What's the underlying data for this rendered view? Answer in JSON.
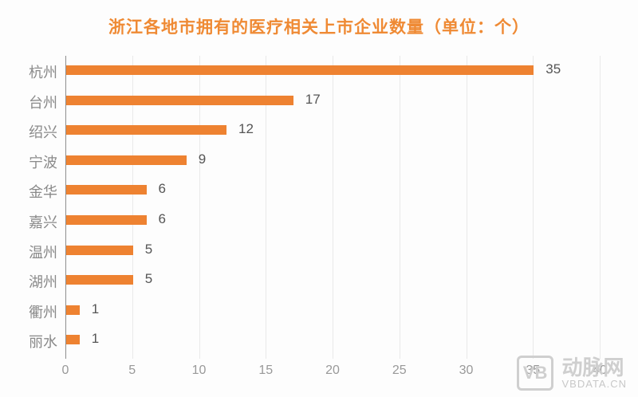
{
  "chart_data": {
    "type": "bar",
    "orientation": "horizontal",
    "title": "浙江各地市拥有的医疗相关上市企业数量（单位：个）",
    "categories": [
      "杭州",
      "台州",
      "绍兴",
      "宁波",
      "金华",
      "嘉兴",
      "温州",
      "湖州",
      "衢州",
      "丽水"
    ],
    "values": [
      35,
      17,
      12,
      9,
      6,
      6,
      5,
      5,
      1,
      1
    ],
    "xlabel": "",
    "ylabel": "",
    "xlim": [
      0,
      40
    ],
    "xticks": [
      "0",
      "5",
      "10",
      "15",
      "20",
      "25",
      "30",
      "35",
      "40"
    ],
    "grid": true,
    "bar_color": "#ee8231",
    "data_labels": true
  },
  "watermark": {
    "logo": "VB",
    "cn": "动脉网",
    "en": "VBDATA.CN"
  }
}
